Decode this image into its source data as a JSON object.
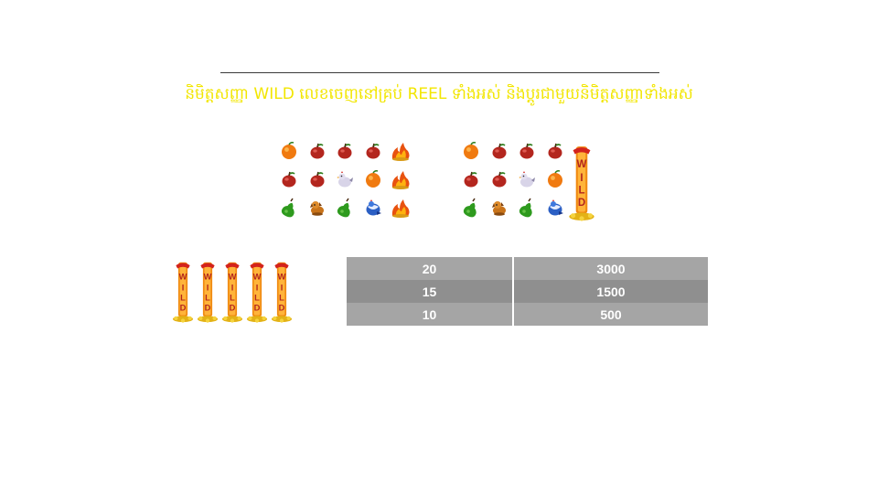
{
  "rule_text": "និមិត្តសញ្ញា WILD លេខចេញនៅគ្រប់ REEL ទាំងអស់ និងប្តូរជាមួយនិមិត្តសញ្ញាទាំងអស់",
  "colors": {
    "headline": "#f2e600",
    "row_light": "#a5a5a5",
    "row_dark": "#8f8f8f"
  },
  "example_before": [
    [
      "orange-icon",
      "apple-icon",
      "apple-icon",
      "apple-icon",
      "fire-icon"
    ],
    [
      "apple-icon",
      "apple-icon",
      "chicken-icon",
      "orange-icon",
      "fire-icon"
    ],
    [
      "pear-icon",
      "dog-icon",
      "pear-icon",
      "rooster-icon",
      "fire-icon"
    ]
  ],
  "example_after": [
    [
      "orange-icon",
      "apple-icon",
      "apple-icon",
      "apple-icon"
    ],
    [
      "apple-icon",
      "apple-icon",
      "chicken-icon",
      "orange-icon"
    ],
    [
      "pear-icon",
      "dog-icon",
      "pear-icon",
      "rooster-icon"
    ]
  ],
  "wild_symbol": {
    "label": "WILD",
    "icon": "wild-totem-icon"
  },
  "paytable": {
    "symbol_count": 5,
    "rows": [
      {
        "lines": "20",
        "pay": "3000"
      },
      {
        "lines": "15",
        "pay": "1500"
      },
      {
        "lines": "10",
        "pay": "500"
      }
    ]
  }
}
